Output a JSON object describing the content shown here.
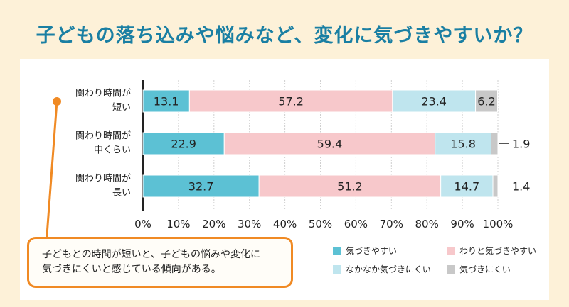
{
  "title": "子どもの落ち込みや悩みなど、変化に気づきやすいか？",
  "note": [
    "子どもとの時間が短いと、子どもの悩みや変化に",
    "気づきにくいと感じている傾向がある。"
  ],
  "colors": {
    "easy": "#5cc1d4",
    "relatively_easy": "#f7c8cb",
    "relatively_hard": "#bfe5ee",
    "hard": "#c8c8c8",
    "title": "#1a7fa3",
    "accent": "#f08a24"
  },
  "chart_data": {
    "type": "bar",
    "orientation": "horizontal",
    "stacked": true,
    "categories": [
      [
        "関わり時間が",
        "短い"
      ],
      [
        "関わり時間が",
        "中くらい"
      ],
      [
        "関わり時間が",
        "長い"
      ]
    ],
    "series": [
      {
        "name": "気づきやすい",
        "values": [
          13.1,
          22.9,
          32.7
        ]
      },
      {
        "name": "わりと気づきやすい",
        "values": [
          57.2,
          59.4,
          51.2
        ]
      },
      {
        "name": "なかなか気づきにくい",
        "values": [
          23.4,
          15.8,
          14.7
        ]
      },
      {
        "name": "気づきにくい",
        "values": [
          6.2,
          1.9,
          1.4
        ]
      }
    ],
    "xlim": [
      0,
      100
    ],
    "xticks": [
      "0%",
      "10%",
      "20%",
      "30%",
      "40%",
      "50%",
      "60%",
      "70%",
      "80%",
      "90%",
      "100%"
    ],
    "grid": true,
    "legend_position": "bottom-right"
  }
}
